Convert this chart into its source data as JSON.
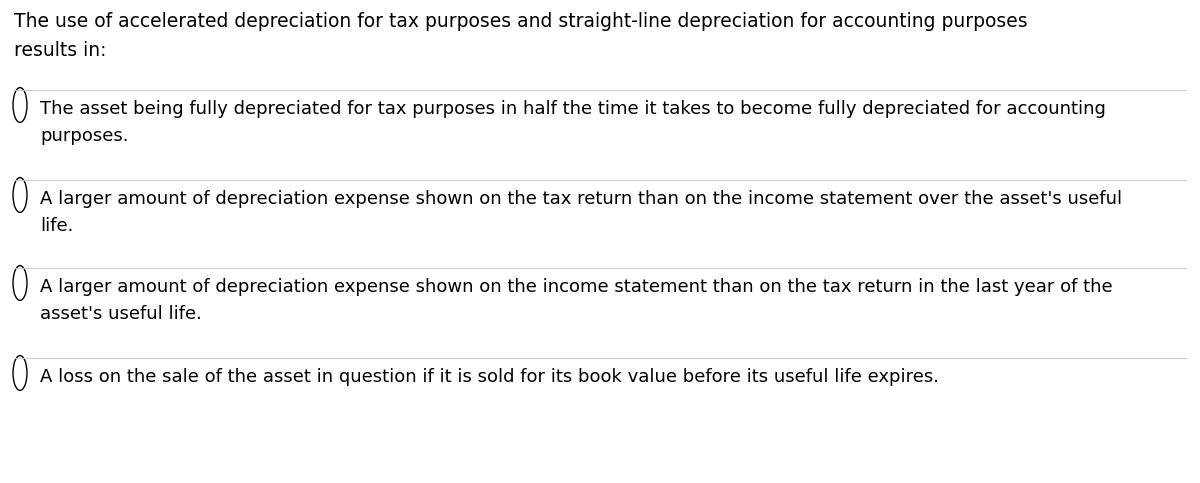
{
  "background_color": "#ffffff",
  "text_color": "#000000",
  "line_color": "#cccccc",
  "question": "The use of accelerated depreciation for tax purposes and straight-line depreciation for accounting purposes\nresults in:",
  "options": [
    "The asset being fully depreciated for tax purposes in half the time it takes to become fully depreciated for accounting\npurposes.",
    "A larger amount of depreciation expense shown on the tax return than on the income statement over the asset's useful\nlife.",
    "A larger amount of depreciation expense shown on the income statement than on the tax return in the last year of the\nasset's useful life.",
    "A loss on the sale of the asset in question if it is sold for its book value before its useful life expires."
  ],
  "question_fontsize": 13.5,
  "option_fontsize": 13.0,
  "fig_width": 12.0,
  "fig_height": 4.83,
  "dpi": 100
}
